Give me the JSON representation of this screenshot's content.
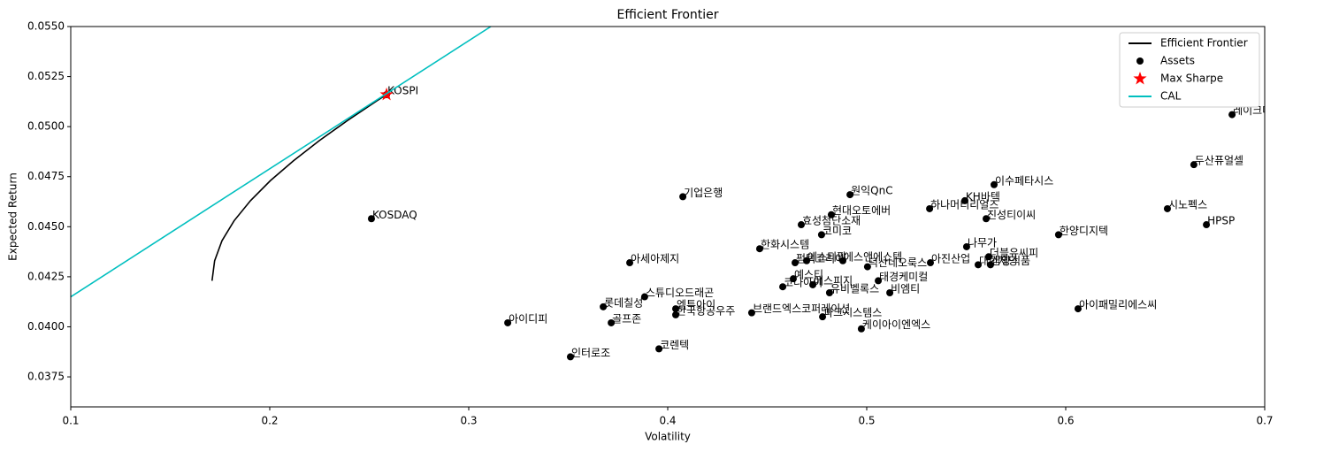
{
  "chart_data": {
    "type": "scatter",
    "title": "Efficient Frontier",
    "x_label": "Volatility",
    "y_label": "Expected Return",
    "xlim": [
      0.1,
      0.7
    ],
    "ylim": [
      0.036,
      0.055
    ],
    "xticks": [
      0.1,
      0.2,
      0.3,
      0.4,
      0.5,
      0.6,
      0.7
    ],
    "yticks": [
      0.0375,
      {
        "value": 0.04,
        "label": "0.0400"
      },
      0.0425,
      {
        "value": 0.045,
        "label": "0.0450"
      },
      0.0475,
      {
        "value": 0.05,
        "label": "0.0500"
      },
      0.0525,
      {
        "value": 0.055,
        "label": "0.0550"
      }
    ],
    "legend": "upper right",
    "series": [
      {
        "name": "Efficient Frontier",
        "type": "line",
        "color": "#000000",
        "x": [
          0.171,
          0.1723,
          0.176,
          0.1821,
          0.1903,
          0.2003,
          0.212,
          0.2249,
          0.239,
          0.254,
          0.2587
        ],
        "values": [
          0.0423,
          0.0433,
          0.0443,
          0.0453,
          0.0463,
          0.0473,
          0.0483,
          0.0493,
          0.0503,
          0.0513,
          0.0516
        ]
      },
      {
        "name": "Assets",
        "type": "scatter",
        "color": "#000000",
        "labels": [
          "KOSPI",
          "KOSDAQ",
          "레이크머티리얼즈",
          "두산퓨얼셀",
          "이수페타시스",
          "원익QnC",
          "기업은행",
          "KH바텍",
          "시노펙스",
          "하나머티리얼즈",
          "현대오토에버",
          "진성티이씨",
          "HPSP",
          "효성첨단소재",
          "코미코",
          "한양디지텍",
          "한화시스템",
          "나무가",
          "더블유씨피",
          "아세아제지",
          "펌텍코리아",
          "에스티팜",
          "에스앤에스텍",
          "덕산네오룩스",
          "아진산업",
          "대한제당",
          "삼양식품",
          "스튜디오드래곤",
          "예스티",
          "태경케미컬",
          "코나아이",
          "에스피지",
          "비엠티",
          "유비벨록스",
          "롯데칠성",
          "엠투아이",
          "한국항공우주",
          "브랜드엑스코퍼레이션",
          "파크시스템스",
          "아이패밀리에스씨",
          "아이디피",
          "골프존",
          "케이아이엔엑스",
          "코렌텍",
          "인터로조"
        ],
        "x": [
          0.2587,
          0.2511,
          0.6836,
          0.6644,
          0.564,
          0.4916,
          0.4076,
          0.5493,
          0.6511,
          0.5316,
          0.4822,
          0.56,
          0.6707,
          0.4671,
          0.4773,
          0.5964,
          0.4462,
          0.5502,
          0.5613,
          0.3809,
          0.464,
          0.4698,
          0.488,
          0.5004,
          0.532,
          0.556,
          0.5622,
          0.3884,
          0.4631,
          0.5058,
          0.4578,
          0.4729,
          0.5116,
          0.4813,
          0.3676,
          0.404,
          0.404,
          0.4422,
          0.4778,
          0.6062,
          0.3196,
          0.3716,
          0.4973,
          0.3956,
          0.3511
        ],
        "values": [
          0.0516,
          0.0454,
          0.0506,
          0.0481,
          0.0471,
          0.0466,
          0.0465,
          0.0463,
          0.0459,
          0.0459,
          0.0456,
          0.0454,
          0.0451,
          0.0451,
          0.0446,
          0.0446,
          0.0439,
          0.044,
          0.0435,
          0.0432,
          0.0432,
          0.0433,
          0.0433,
          0.043,
          0.0432,
          0.0431,
          0.0431,
          0.0415,
          0.0424,
          0.0423,
          0.042,
          0.0421,
          0.0417,
          0.0417,
          0.041,
          0.0409,
          0.0406,
          0.0407,
          0.0405,
          0.0409,
          0.0402,
          0.0402,
          0.0399,
          0.0389,
          0.0385
        ]
      },
      {
        "name": "Max Sharpe",
        "type": "star",
        "color": "#ff0000",
        "x": [
          0.2587
        ],
        "values": [
          0.0516
        ]
      },
      {
        "name": "CAL",
        "type": "line",
        "color": "#00bfbf",
        "x": [
          0.1,
          0.3111
        ],
        "values": [
          0.0415,
          0.055
        ]
      }
    ]
  }
}
